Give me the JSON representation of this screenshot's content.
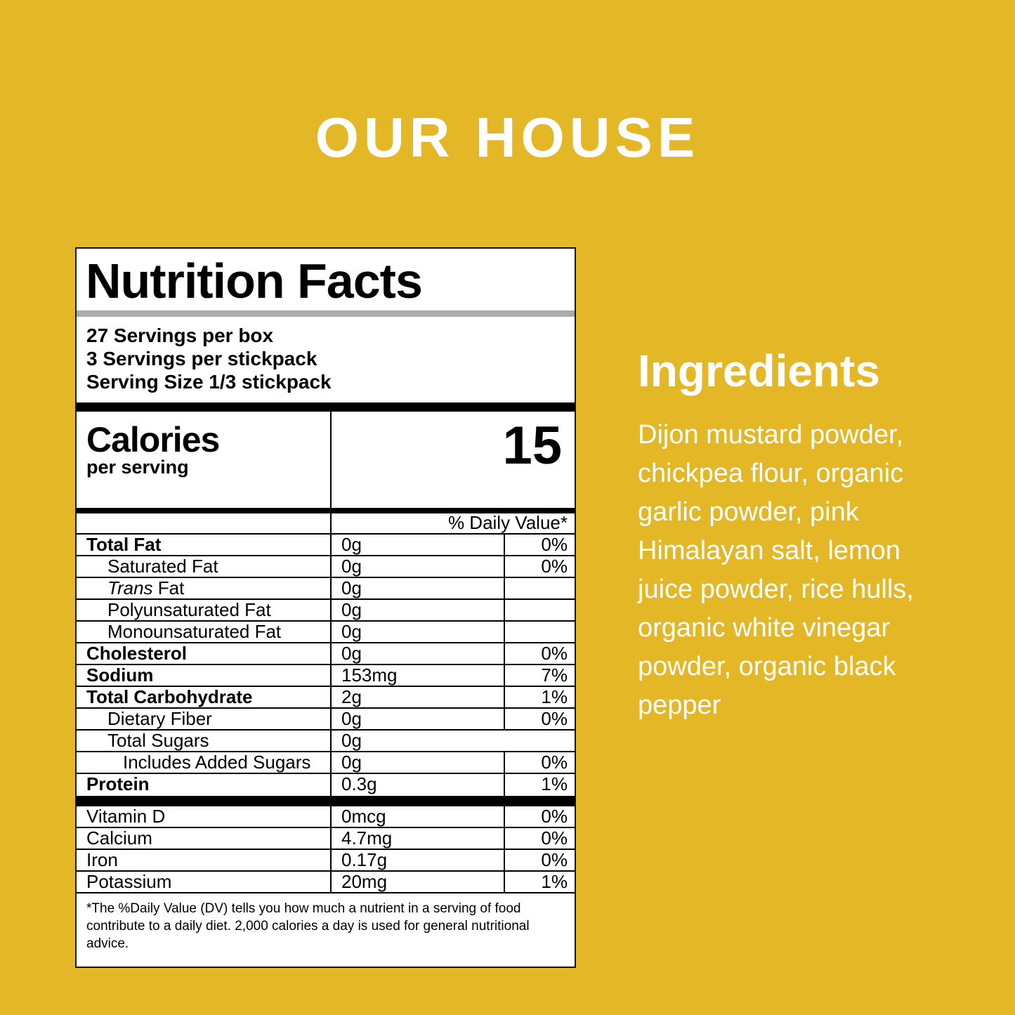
{
  "page": {
    "title": "OUR HOUSE",
    "background_color": "#E3B725",
    "accent_text_color": "#FFFFFF"
  },
  "nutrition_label": {
    "title": "Nutrition Facts",
    "servings": [
      "27 Servings per box",
      "3 Servings per stickpack",
      "Serving Size 1/3 stickpack"
    ],
    "calories": {
      "label": "Calories",
      "sublabel": "per serving",
      "value": "15"
    },
    "daily_value_header": "% Daily Value*",
    "rows": [
      {
        "name": "Total Fat",
        "amount": "0g",
        "dv": "0%",
        "bold": true
      },
      {
        "name": "Saturated Fat",
        "amount": "0g",
        "dv": "0%",
        "indent": 1
      },
      {
        "name_italic": "Trans",
        "name": " Fat",
        "amount": "0g",
        "dv": "",
        "indent": 1
      },
      {
        "name": "Polyunsaturated Fat",
        "amount": "0g",
        "dv": "",
        "indent": 1
      },
      {
        "name": "Monounsaturated Fat",
        "amount": "0g",
        "dv": "",
        "indent": 1
      },
      {
        "name": "Cholesterol",
        "amount": "0g",
        "dv": "0%",
        "bold": true
      },
      {
        "name": "Sodium",
        "amount": "153mg",
        "dv": "7%",
        "bold": true
      },
      {
        "name": "Total Carbohydrate",
        "amount": "2g",
        "dv": "1%",
        "bold": true
      },
      {
        "name": "Dietary Fiber",
        "amount": "0g",
        "dv": "0%",
        "indent": 1
      },
      {
        "name": "Total Sugars",
        "amount": "0g",
        "no_dv": true,
        "indent": 1
      },
      {
        "name": "Includes Added Sugars",
        "amount": "0g",
        "dv": "0%",
        "indent": 2
      },
      {
        "name": "Protein",
        "amount": "0.3g",
        "dv": "1%",
        "bold": true
      }
    ],
    "vitamin_rows": [
      {
        "name": "Vitamin D",
        "amount": "0mcg",
        "dv": "0%"
      },
      {
        "name": "Calcium",
        "amount": "4.7mg",
        "dv": "0%"
      },
      {
        "name": "Iron",
        "amount": "0.17g",
        "dv": "0%"
      },
      {
        "name": "Potassium",
        "amount": "20mg",
        "dv": "1%"
      }
    ],
    "footnote": "*The %Daily Value (DV) tells you how much a nutrient in a serving of food\ncontribute to a daily diet. 2,000 calories a day is used for general nutritional advice."
  },
  "ingredients": {
    "title": "Ingredients",
    "text": "Dijon mustard powder,\nchickpea flour, organic\ngarlic powder, pink\nHimalayan salt, lemon\njuice powder, rice hulls,\norganic white vinegar\npowder, organic black\npepper"
  }
}
